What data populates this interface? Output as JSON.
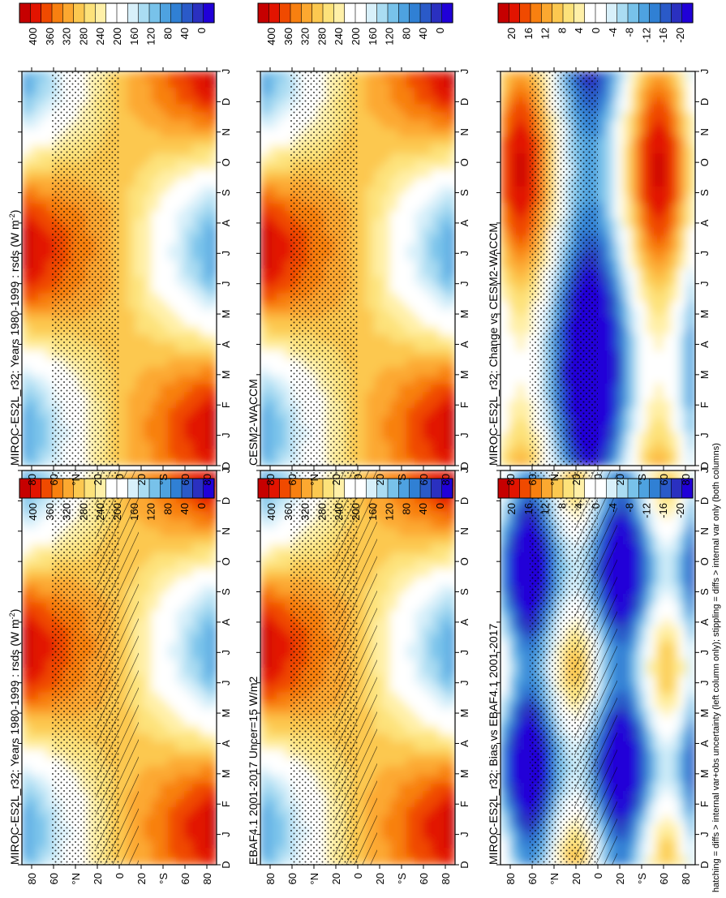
{
  "footer": "hatching = diffs > internal var+obs uncertainty (left column only); stippling = diffs > internal var only (both columns)",
  "colorbars": [
    {
      "id": "cb-top-left",
      "labels": [
        "400",
        "360",
        "320",
        "280",
        "240",
        "200",
        "160",
        "120",
        "80",
        "40",
        "0"
      ],
      "colors": [
        "#c60000",
        "#e21400",
        "#f04a00",
        "#f88010",
        "#fca830",
        "#fcc850",
        "#fde27a",
        "#fff0a8",
        "#ffffff",
        "#ffffff",
        "#d8f0fa",
        "#aadcf2",
        "#78c2ea",
        "#4ea2e0",
        "#3080d4",
        "#2a5ac8",
        "#2a30c0",
        "#2000d8"
      ]
    },
    {
      "id": "cb-top-right",
      "labels": [
        "400",
        "360",
        "320",
        "280",
        "240",
        "200",
        "160",
        "120",
        "80",
        "40",
        "0"
      ],
      "colors": [
        "#c60000",
        "#e21400",
        "#f04a00",
        "#f88010",
        "#fca830",
        "#fcc850",
        "#fde27a",
        "#fff0a8",
        "#ffffff",
        "#ffffff",
        "#d8f0fa",
        "#aadcf2",
        "#78c2ea",
        "#4ea2e0",
        "#3080d4",
        "#2a5ac8",
        "#2a30c0",
        "#2000d8"
      ]
    },
    {
      "id": "cb-mid-left",
      "labels": [
        "400",
        "360",
        "320",
        "280",
        "240",
        "200",
        "160",
        "120",
        "80",
        "40",
        "0"
      ],
      "colors": [
        "#c60000",
        "#e21400",
        "#f04a00",
        "#f88010",
        "#fca830",
        "#fcc850",
        "#fde27a",
        "#fff0a8",
        "#ffffff",
        "#ffffff",
        "#d8f0fa",
        "#aadcf2",
        "#78c2ea",
        "#4ea2e0",
        "#3080d4",
        "#2a5ac8",
        "#2a30c0",
        "#2000d8"
      ]
    },
    {
      "id": "cb-mid-right",
      "labels": [
        "400",
        "360",
        "320",
        "280",
        "240",
        "200",
        "160",
        "120",
        "80",
        "40",
        "0"
      ],
      "colors": [
        "#c60000",
        "#e21400",
        "#f04a00",
        "#f88010",
        "#fca830",
        "#fcc850",
        "#fde27a",
        "#fff0a8",
        "#ffffff",
        "#ffffff",
        "#d8f0fa",
        "#aadcf2",
        "#78c2ea",
        "#4ea2e0",
        "#3080d4",
        "#2a5ac8",
        "#2a30c0",
        "#2000d8"
      ]
    },
    {
      "id": "cb-bot-left",
      "labels": [
        "20",
        "16",
        "12",
        "8",
        "4",
        "0",
        "-4",
        "-8",
        "-12",
        "-16",
        "-20"
      ],
      "colors": [
        "#c60000",
        "#e21400",
        "#f04a00",
        "#f88010",
        "#fca830",
        "#fcc850",
        "#fde27a",
        "#fff0a8",
        "#ffffff",
        "#ffffff",
        "#d8f0fa",
        "#aadcf2",
        "#78c2ea",
        "#4ea2e0",
        "#3080d4",
        "#2a5ac8",
        "#2a30c0",
        "#2000d8"
      ]
    },
    {
      "id": "cb-bot-right",
      "labels": [
        "20",
        "16",
        "12",
        "8",
        "4",
        "0",
        "-4",
        "-8",
        "-12",
        "-16",
        "-20"
      ],
      "colors": [
        "#c60000",
        "#e21400",
        "#f04a00",
        "#f88010",
        "#fca830",
        "#fcc850",
        "#fde27a",
        "#fff0a8",
        "#ffffff",
        "#ffffff",
        "#d8f0fa",
        "#aadcf2",
        "#78c2ea",
        "#4ea2e0",
        "#3080d4",
        "#2a5ac8",
        "#2a30c0",
        "#2000d8"
      ]
    }
  ],
  "panels": [
    {
      "id": "panel-top-left",
      "title": "MIROC-ES2L_r32: Years 1980-1999 : rsds (W m",
      "title_sup": "-2",
      "title_end": ")",
      "kind": "clim",
      "hatch": true
    },
    {
      "id": "panel-top-right",
      "title": "MIROC-ES2L_r32: Years 1980-1999 : rsds (W m",
      "title_sup": "-2",
      "title_end": ")",
      "kind": "clim",
      "hatch": false
    },
    {
      "id": "panel-mid-left",
      "title": "EBAF4.1 2001-2017 Uncer=15 W/m2",
      "title_sup": "",
      "title_end": "",
      "kind": "clim",
      "hatch": true
    },
    {
      "id": "panel-mid-right",
      "title": "CESM2-WACCM",
      "title_sup": "",
      "title_end": "",
      "kind": "clim",
      "hatch": false
    },
    {
      "id": "panel-bot-left",
      "title": "MIROC-ES2L_r32: Bias vs EBAF4.1 2001-2017",
      "title_sup": "",
      "title_end": "",
      "kind": "bias",
      "hatch": true
    },
    {
      "id": "panel-bot-right",
      "title": "MIROC-ES2L_r32: Change vs CESM2-WACCM",
      "title_sup": "",
      "title_end": "",
      "kind": "change",
      "hatch": false
    }
  ],
  "chart_data": [
    {
      "type": "heatmap",
      "title": "MIROC-ES2L_r32: Years 1980-1999 : rsds (W m-2)",
      "x": [
        "D",
        "J",
        "F",
        "M",
        "A",
        "M",
        "J",
        "J",
        "A",
        "S",
        "O",
        "N",
        "D",
        "J"
      ],
      "y": [
        "80",
        "60",
        "°N",
        "20",
        "0",
        "20",
        "°S",
        "60",
        "80"
      ],
      "zlim": [
        0,
        400
      ],
      "colorbar": [
        "400",
        "360",
        "320",
        "280",
        "240",
        "200",
        "160",
        "120",
        "80",
        "40",
        "0"
      ]
    },
    {
      "type": "heatmap",
      "title": "MIROC-ES2L_r32: Years 1980-1999 : rsds (W m-2)",
      "x": [
        "D",
        "J",
        "F",
        "M",
        "A",
        "M",
        "J",
        "J",
        "A",
        "S",
        "O",
        "N",
        "D",
        "J"
      ],
      "y": [
        "80",
        "60",
        "°N",
        "20",
        "0",
        "20",
        "°S",
        "60",
        "80"
      ],
      "zlim": [
        0,
        400
      ],
      "colorbar": [
        "400",
        "360",
        "320",
        "280",
        "240",
        "200",
        "160",
        "120",
        "80",
        "40",
        "0"
      ]
    },
    {
      "type": "heatmap",
      "title": "EBAF4.1 2001-2017 Uncer=15 W/m2",
      "x": [
        "D",
        "J",
        "F",
        "M",
        "A",
        "M",
        "J",
        "J",
        "A",
        "S",
        "O",
        "N",
        "D",
        "J"
      ],
      "y": [
        "80",
        "60",
        "°N",
        "20",
        "0",
        "20",
        "°S",
        "60",
        "80"
      ],
      "zlim": [
        0,
        400
      ],
      "colorbar": [
        "400",
        "360",
        "320",
        "280",
        "240",
        "200",
        "160",
        "120",
        "80",
        "40",
        "0"
      ]
    },
    {
      "type": "heatmap",
      "title": "CESM2-WACCM",
      "x": [
        "D",
        "J",
        "F",
        "M",
        "A",
        "M",
        "J",
        "J",
        "A",
        "S",
        "O",
        "N",
        "D",
        "J"
      ],
      "y": [
        "80",
        "60",
        "°N",
        "20",
        "0",
        "20",
        "°S",
        "60",
        "80"
      ],
      "zlim": [
        0,
        400
      ],
      "colorbar": [
        "400",
        "360",
        "320",
        "280",
        "240",
        "200",
        "160",
        "120",
        "80",
        "40",
        "0"
      ]
    },
    {
      "type": "heatmap",
      "title": "MIROC-ES2L_r32: Bias vs EBAF4.1 2001-2017",
      "x": [
        "D",
        "J",
        "F",
        "M",
        "A",
        "M",
        "J",
        "J",
        "A",
        "S",
        "O",
        "N",
        "D",
        "J"
      ],
      "y": [
        "80",
        "60",
        "°N",
        "20",
        "0",
        "20",
        "°S",
        "60",
        "80"
      ],
      "zlim": [
        -20,
        20
      ],
      "colorbar": [
        "20",
        "16",
        "12",
        "8",
        "4",
        "0",
        "-4",
        "-8",
        "-12",
        "-16",
        "-20"
      ]
    },
    {
      "type": "heatmap",
      "title": "MIROC-ES2L_r32: Change vs CESM2-WACCM",
      "x": [
        "D",
        "J",
        "F",
        "M",
        "A",
        "M",
        "J",
        "J",
        "A",
        "S",
        "O",
        "N",
        "D",
        "J"
      ],
      "y": [
        "80",
        "60",
        "°N",
        "20",
        "0",
        "20",
        "°S",
        "60",
        "80"
      ],
      "zlim": [
        -20,
        20
      ],
      "colorbar": [
        "20",
        "16",
        "12",
        "8",
        "4",
        "0",
        "-4",
        "-8",
        "-12",
        "-16",
        "-20"
      ]
    }
  ]
}
